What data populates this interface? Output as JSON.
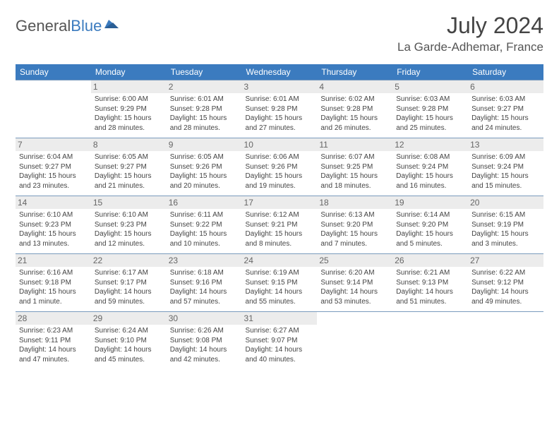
{
  "logo": {
    "word1": "General",
    "word2": "Blue"
  },
  "title": "July 2024",
  "location": "La Garde-Adhemar, France",
  "dayHeaders": [
    "Sunday",
    "Monday",
    "Tuesday",
    "Wednesday",
    "Thursday",
    "Friday",
    "Saturday"
  ],
  "colors": {
    "header_bg": "#3b7bbf",
    "header_text": "#ffffff",
    "daynum_bg": "#ececec",
    "border": "#7a9bbd",
    "text": "#444444"
  },
  "weeks": [
    [
      null,
      {
        "n": "1",
        "sr": "Sunrise: 6:00 AM",
        "ss": "Sunset: 9:29 PM",
        "dl": "Daylight: 15 hours and 28 minutes."
      },
      {
        "n": "2",
        "sr": "Sunrise: 6:01 AM",
        "ss": "Sunset: 9:28 PM",
        "dl": "Daylight: 15 hours and 28 minutes."
      },
      {
        "n": "3",
        "sr": "Sunrise: 6:01 AM",
        "ss": "Sunset: 9:28 PM",
        "dl": "Daylight: 15 hours and 27 minutes."
      },
      {
        "n": "4",
        "sr": "Sunrise: 6:02 AM",
        "ss": "Sunset: 9:28 PM",
        "dl": "Daylight: 15 hours and 26 minutes."
      },
      {
        "n": "5",
        "sr": "Sunrise: 6:03 AM",
        "ss": "Sunset: 9:28 PM",
        "dl": "Daylight: 15 hours and 25 minutes."
      },
      {
        "n": "6",
        "sr": "Sunrise: 6:03 AM",
        "ss": "Sunset: 9:27 PM",
        "dl": "Daylight: 15 hours and 24 minutes."
      }
    ],
    [
      {
        "n": "7",
        "sr": "Sunrise: 6:04 AM",
        "ss": "Sunset: 9:27 PM",
        "dl": "Daylight: 15 hours and 23 minutes."
      },
      {
        "n": "8",
        "sr": "Sunrise: 6:05 AM",
        "ss": "Sunset: 9:27 PM",
        "dl": "Daylight: 15 hours and 21 minutes."
      },
      {
        "n": "9",
        "sr": "Sunrise: 6:05 AM",
        "ss": "Sunset: 9:26 PM",
        "dl": "Daylight: 15 hours and 20 minutes."
      },
      {
        "n": "10",
        "sr": "Sunrise: 6:06 AM",
        "ss": "Sunset: 9:26 PM",
        "dl": "Daylight: 15 hours and 19 minutes."
      },
      {
        "n": "11",
        "sr": "Sunrise: 6:07 AM",
        "ss": "Sunset: 9:25 PM",
        "dl": "Daylight: 15 hours and 18 minutes."
      },
      {
        "n": "12",
        "sr": "Sunrise: 6:08 AM",
        "ss": "Sunset: 9:24 PM",
        "dl": "Daylight: 15 hours and 16 minutes."
      },
      {
        "n": "13",
        "sr": "Sunrise: 6:09 AM",
        "ss": "Sunset: 9:24 PM",
        "dl": "Daylight: 15 hours and 15 minutes."
      }
    ],
    [
      {
        "n": "14",
        "sr": "Sunrise: 6:10 AM",
        "ss": "Sunset: 9:23 PM",
        "dl": "Daylight: 15 hours and 13 minutes."
      },
      {
        "n": "15",
        "sr": "Sunrise: 6:10 AM",
        "ss": "Sunset: 9:23 PM",
        "dl": "Daylight: 15 hours and 12 minutes."
      },
      {
        "n": "16",
        "sr": "Sunrise: 6:11 AM",
        "ss": "Sunset: 9:22 PM",
        "dl": "Daylight: 15 hours and 10 minutes."
      },
      {
        "n": "17",
        "sr": "Sunrise: 6:12 AM",
        "ss": "Sunset: 9:21 PM",
        "dl": "Daylight: 15 hours and 8 minutes."
      },
      {
        "n": "18",
        "sr": "Sunrise: 6:13 AM",
        "ss": "Sunset: 9:20 PM",
        "dl": "Daylight: 15 hours and 7 minutes."
      },
      {
        "n": "19",
        "sr": "Sunrise: 6:14 AM",
        "ss": "Sunset: 9:20 PM",
        "dl": "Daylight: 15 hours and 5 minutes."
      },
      {
        "n": "20",
        "sr": "Sunrise: 6:15 AM",
        "ss": "Sunset: 9:19 PM",
        "dl": "Daylight: 15 hours and 3 minutes."
      }
    ],
    [
      {
        "n": "21",
        "sr": "Sunrise: 6:16 AM",
        "ss": "Sunset: 9:18 PM",
        "dl": "Daylight: 15 hours and 1 minute."
      },
      {
        "n": "22",
        "sr": "Sunrise: 6:17 AM",
        "ss": "Sunset: 9:17 PM",
        "dl": "Daylight: 14 hours and 59 minutes."
      },
      {
        "n": "23",
        "sr": "Sunrise: 6:18 AM",
        "ss": "Sunset: 9:16 PM",
        "dl": "Daylight: 14 hours and 57 minutes."
      },
      {
        "n": "24",
        "sr": "Sunrise: 6:19 AM",
        "ss": "Sunset: 9:15 PM",
        "dl": "Daylight: 14 hours and 55 minutes."
      },
      {
        "n": "25",
        "sr": "Sunrise: 6:20 AM",
        "ss": "Sunset: 9:14 PM",
        "dl": "Daylight: 14 hours and 53 minutes."
      },
      {
        "n": "26",
        "sr": "Sunrise: 6:21 AM",
        "ss": "Sunset: 9:13 PM",
        "dl": "Daylight: 14 hours and 51 minutes."
      },
      {
        "n": "27",
        "sr": "Sunrise: 6:22 AM",
        "ss": "Sunset: 9:12 PM",
        "dl": "Daylight: 14 hours and 49 minutes."
      }
    ],
    [
      {
        "n": "28",
        "sr": "Sunrise: 6:23 AM",
        "ss": "Sunset: 9:11 PM",
        "dl": "Daylight: 14 hours and 47 minutes."
      },
      {
        "n": "29",
        "sr": "Sunrise: 6:24 AM",
        "ss": "Sunset: 9:10 PM",
        "dl": "Daylight: 14 hours and 45 minutes."
      },
      {
        "n": "30",
        "sr": "Sunrise: 6:26 AM",
        "ss": "Sunset: 9:08 PM",
        "dl": "Daylight: 14 hours and 42 minutes."
      },
      {
        "n": "31",
        "sr": "Sunrise: 6:27 AM",
        "ss": "Sunset: 9:07 PM",
        "dl": "Daylight: 14 hours and 40 minutes."
      },
      null,
      null,
      null
    ]
  ]
}
